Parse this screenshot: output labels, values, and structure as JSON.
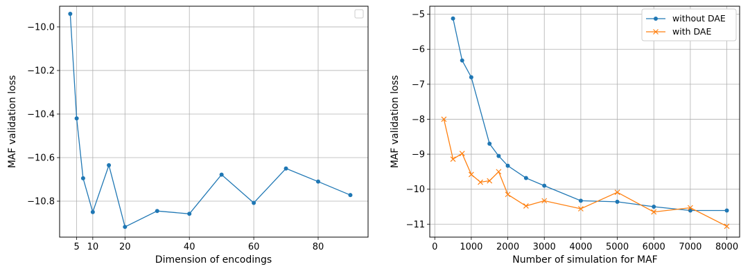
{
  "colors": {
    "series_blue": "#1f77b4",
    "series_orange": "#ff7f0e",
    "grid": "#b0b0b0",
    "axis": "#000000"
  },
  "chart_data": [
    {
      "type": "line",
      "xlabel": "Dimension of encodings",
      "ylabel": "MAF validation loss",
      "xlim": [
        -0.3,
        95.5
      ],
      "ylim": [
        -10.965,
        -9.905
      ],
      "xticks": [
        5,
        10,
        20,
        40,
        60,
        80
      ],
      "xtick_labels": [
        "5",
        "10",
        "20",
        "40",
        "60",
        "80"
      ],
      "yticks": [
        -10.8,
        -10.6,
        -10.4,
        -10.2,
        -10.0
      ],
      "ytick_labels": [
        "−10.8",
        "−10.6",
        "−10.4",
        "−10.2",
        "−10.0"
      ],
      "grid": true,
      "legend": "top-right (empty box)",
      "series": [
        {
          "color": "#1f77b4",
          "marker": "circle",
          "x": [
            3,
            5,
            7,
            10,
            15,
            20,
            30,
            40,
            50,
            60,
            70,
            80,
            90
          ],
          "y": [
            -9.94,
            -10.42,
            -10.695,
            -10.85,
            -10.635,
            -10.918,
            -10.845,
            -10.858,
            -10.678,
            -10.808,
            -10.65,
            -10.71,
            -10.772
          ]
        }
      ]
    },
    {
      "type": "line",
      "xlabel": "Number of simulation for MAF",
      "ylabel": "MAF validation loss",
      "xlim": [
        -137,
        8350
      ],
      "ylim": [
        -11.37,
        -4.77
      ],
      "xticks": [
        0,
        1000,
        2000,
        3000,
        4000,
        5000,
        6000,
        7000,
        8000
      ],
      "xtick_labels": [
        "0",
        "1000",
        "2000",
        "3000",
        "4000",
        "5000",
        "6000",
        "7000",
        "8000"
      ],
      "yticks": [
        -11,
        -10,
        -9,
        -8,
        -7,
        -6,
        -5
      ],
      "ytick_labels": [
        "−11",
        "−10",
        "−9",
        "−8",
        "−7",
        "−6",
        "−5"
      ],
      "grid": true,
      "legend": "top-right",
      "series": [
        {
          "name": "without DAE",
          "color": "#1f77b4",
          "marker": "circle",
          "x": [
            500,
            750,
            1000,
            1500,
            1750,
            2000,
            2500,
            3000,
            4000,
            5000,
            6000,
            7000,
            8000
          ],
          "y": [
            -5.12,
            -6.32,
            -6.8,
            -8.7,
            -9.05,
            -9.33,
            -9.68,
            -9.9,
            -10.33,
            -10.36,
            -10.5,
            -10.61,
            -10.61
          ]
        },
        {
          "name": "with DAE",
          "color": "#ff7f0e",
          "marker": "x",
          "x": [
            250,
            500,
            750,
            1000,
            1250,
            1500,
            1750,
            2000,
            2500,
            3000,
            4000,
            5000,
            6000,
            7000,
            8000
          ],
          "y": [
            -8.0,
            -9.14,
            -8.98,
            -9.58,
            -9.8,
            -9.76,
            -9.5,
            -10.15,
            -10.48,
            -10.33,
            -10.56,
            -10.09,
            -10.65,
            -10.53,
            -11.06
          ]
        }
      ]
    }
  ]
}
